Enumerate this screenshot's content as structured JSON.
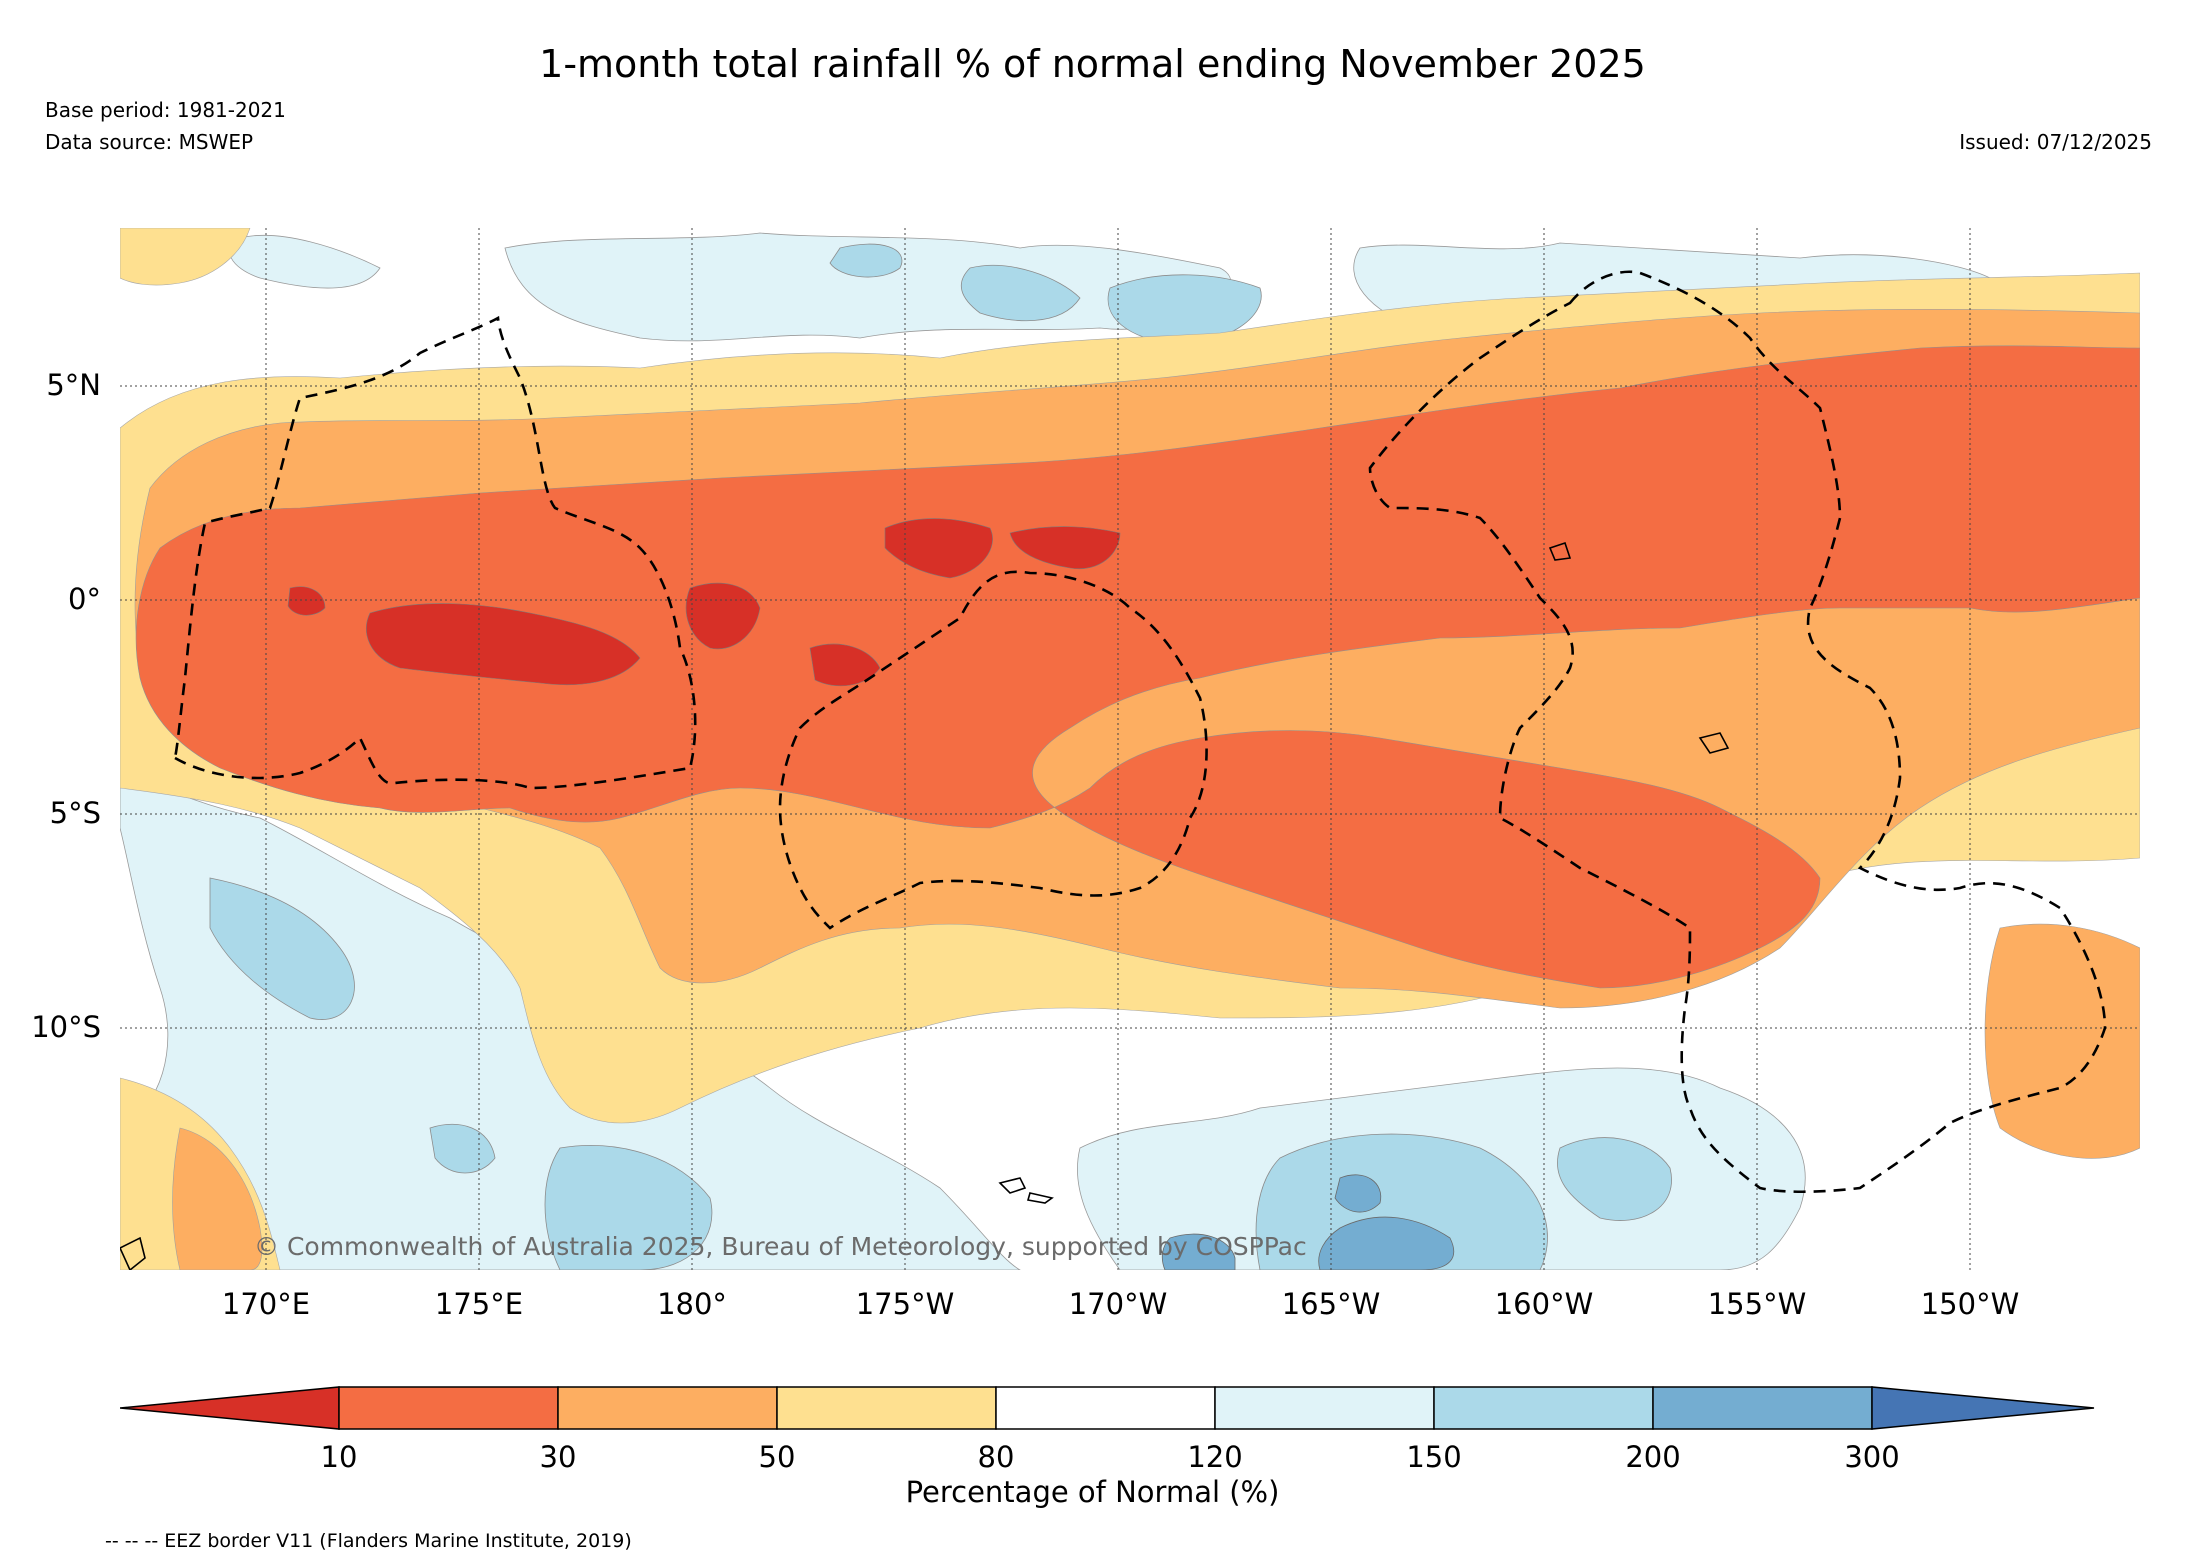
{
  "title": "1-month total rainfall % of normal ending November 2025",
  "base_period": "Base period: 1981-2021",
  "data_source": "Data source: MSWEP",
  "issued": "Issued: 07/12/2025",
  "map": {
    "lat_labels": [
      "5°N",
      "0°",
      "5°S",
      "10°S"
    ],
    "lon_labels": [
      "170°E",
      "175°E",
      "180°",
      "175°W",
      "170°W",
      "165°W",
      "160°W",
      "155°W",
      "150°W"
    ],
    "copyright": "© Commonwealth of Australia 2025, Bureau of Meteorology, supported by COSPPac",
    "category_colors": {
      "lt10": "#d73027",
      "10_30": "#f46d43",
      "30_50": "#fdae61",
      "50_80": "#fee090",
      "80_120": "#ffffff",
      "120_150": "#e0f3f8",
      "150_200": "#abd9e9",
      "200_300": "#74add1",
      "gt300": "#4575b4"
    }
  },
  "colorbar": {
    "ticks": [
      "10",
      "30",
      "50",
      "80",
      "120",
      "150",
      "200",
      "300"
    ],
    "label": "Percentage of Normal (%)",
    "colors": [
      "#d73027",
      "#f46d43",
      "#fdae61",
      "#fee090",
      "#ffffff",
      "#e0f3f8",
      "#abd9e9",
      "#74add1",
      "#4575b4"
    ]
  },
  "footnote": "-- -- -- EEZ border V11 (Flanders Marine Institute, 2019)"
}
